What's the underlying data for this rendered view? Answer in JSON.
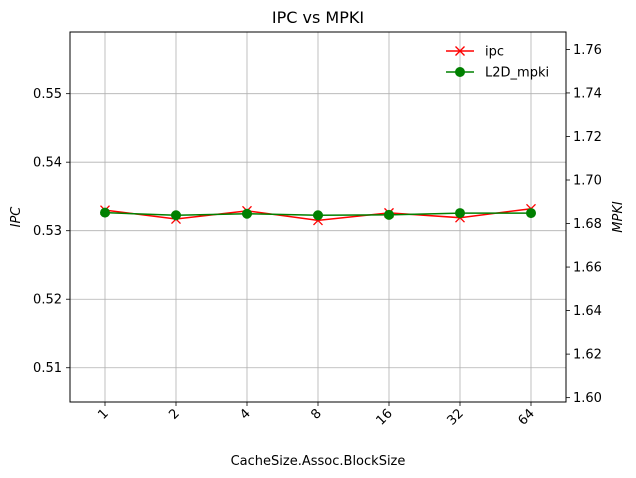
{
  "chart_data": {
    "type": "line",
    "title": "IPC vs MPKI",
    "xlabel": "CacheSize.Assoc.BlockSize",
    "ylabel_left": "IPC",
    "ylabel_right": "MPKI",
    "categories": [
      "1",
      "2",
      "4",
      "8",
      "16",
      "32",
      "64"
    ],
    "y_left_lim": [
      0.505,
      0.559
    ],
    "y_right_lim": [
      1.598,
      1.768
    ],
    "y_left_ticks": [
      "0.51",
      "0.52",
      "0.53",
      "0.54",
      "0.55"
    ],
    "y_right_ticks": [
      "1.60",
      "1.62",
      "1.64",
      "1.66",
      "1.68",
      "1.70",
      "1.72",
      "1.74",
      "1.76"
    ],
    "grid": true,
    "legend_position": "top-right",
    "series": [
      {
        "name": "ipc",
        "axis": "left",
        "color": "#ff0000",
        "marker": "x",
        "values": [
          0.533,
          0.5317,
          0.5329,
          0.5315,
          0.5326,
          0.5319,
          0.5332
        ]
      },
      {
        "name": "L2D_mpki",
        "axis": "right",
        "color": "#008000",
        "marker": "o",
        "values": [
          1.685,
          1.6838,
          1.6845,
          1.6838,
          1.684,
          1.6848,
          1.6848
        ]
      }
    ]
  }
}
